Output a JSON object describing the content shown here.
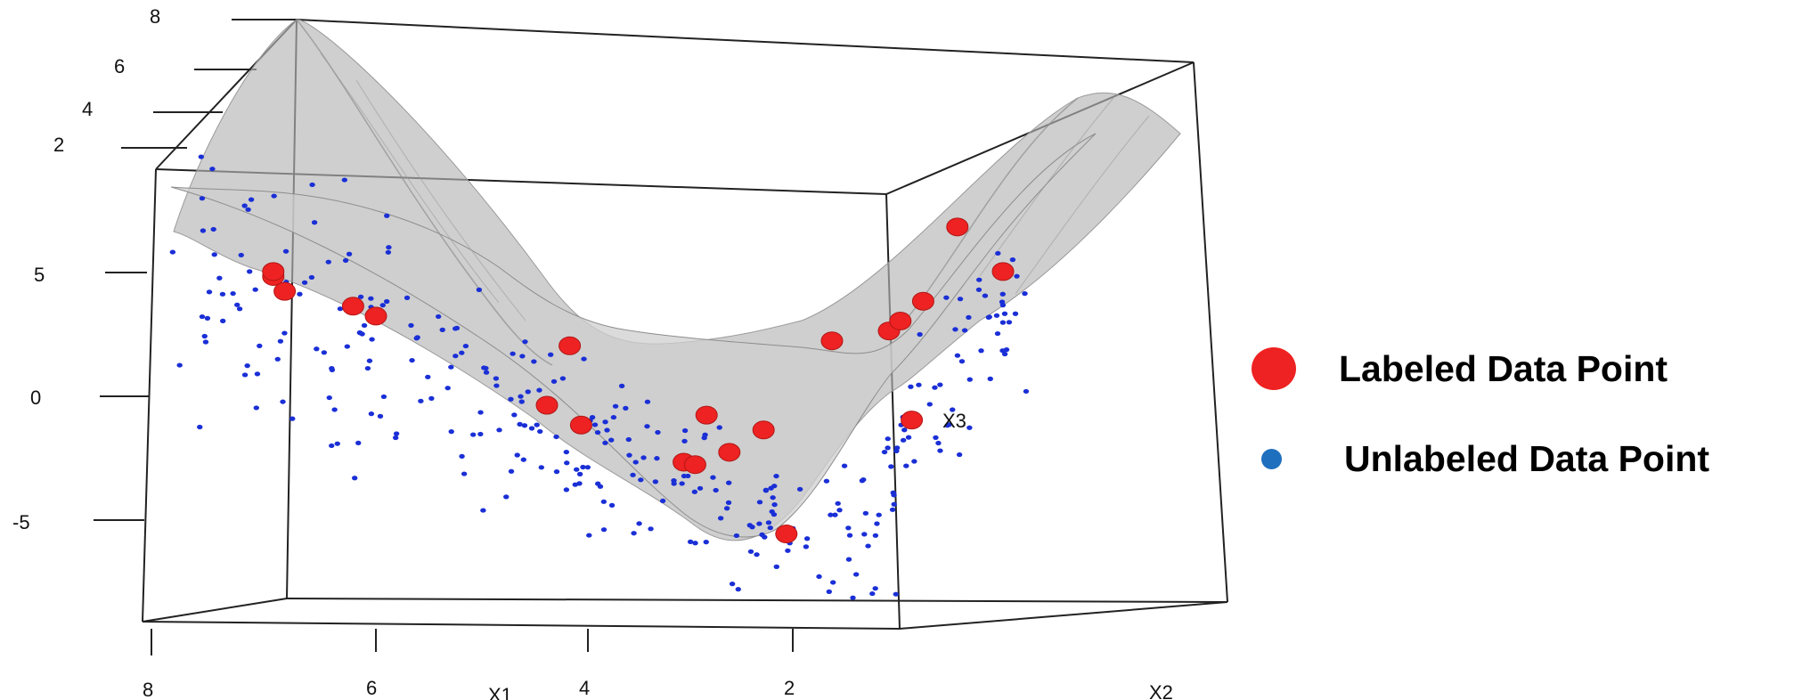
{
  "chart_data": {
    "type": "scatter",
    "title": "",
    "xlabel": "X1",
    "ylabel": "X2",
    "zlabel": "X3",
    "x_ticks": [
      "8",
      "6",
      "4",
      "2"
    ],
    "z_left_ticks": [
      "5",
      "0",
      "-5"
    ],
    "z_back_ticks": [
      "8",
      "6",
      "4",
      "2"
    ],
    "xlim": [
      0,
      8
    ],
    "zlim": [
      -8,
      8
    ],
    "surface": "gray regression surface",
    "series": [
      {
        "name": "Labeled Data Point",
        "color": "#ee2222",
        "x": [
          6.9,
          6.9,
          6.8,
          6.2,
          6.0,
          4.3,
          4.5,
          4.2,
          3.1,
          3.3,
          3.2,
          2.9,
          2.4,
          2.6,
          2.0,
          1.5,
          1.4,
          1.3,
          1.2,
          0.9,
          0.5
        ],
        "z": [
          5.2,
          5.4,
          4.6,
          4.0,
          3.6,
          2.4,
          0.0,
          -0.8,
          -0.4,
          -2.3,
          -2.4,
          -1.9,
          -5.2,
          -1.0,
          2.6,
          3.0,
          3.4,
          -0.6,
          4.2,
          7.2,
          5.4
        ]
      },
      {
        "name": "Unlabeled Data Point",
        "color": "#1a2fd6"
      }
    ],
    "legend": {
      "position": "right",
      "items": [
        {
          "label": "Labeled Data Point",
          "color": "#ee2222",
          "marker": "large-dot"
        },
        {
          "label": "Unlabeled Data Point",
          "color": "#1f6fbf",
          "marker": "small-dot"
        }
      ]
    }
  }
}
